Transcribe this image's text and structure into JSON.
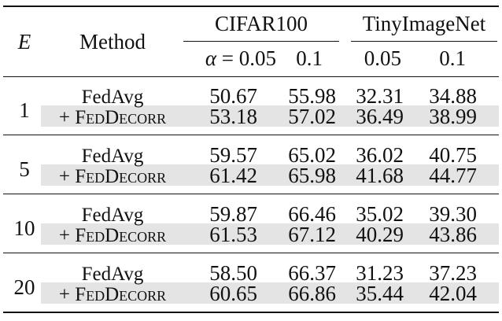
{
  "table": {
    "header": {
      "epoch_symbol": "E",
      "method": "Method",
      "datasets": [
        "CIFAR100",
        "TinyImageNet"
      ],
      "alpha_symbol": "α",
      "alpha_eq": " = ",
      "alpha_values": [
        "0.05",
        "0.1",
        "0.05",
        "0.1"
      ]
    },
    "groups": [
      {
        "E": "1",
        "rows": [
          {
            "method": "FedAvg",
            "plus": "",
            "values": [
              "50.67",
              "55.98",
              "32.31",
              "34.88"
            ]
          },
          {
            "method": "FedDecorr",
            "plus": "+ ",
            "values": [
              "53.18",
              "57.02",
              "36.49",
              "38.99"
            ]
          }
        ]
      },
      {
        "E": "5",
        "rows": [
          {
            "method": "FedAvg",
            "plus": "",
            "values": [
              "59.57",
              "65.02",
              "36.02",
              "40.75"
            ]
          },
          {
            "method": "FedDecorr",
            "plus": "+ ",
            "values": [
              "61.42",
              "65.98",
              "41.68",
              "44.77"
            ]
          }
        ]
      },
      {
        "E": "10",
        "rows": [
          {
            "method": "FedAvg",
            "plus": "",
            "values": [
              "59.87",
              "66.46",
              "35.02",
              "39.30"
            ]
          },
          {
            "method": "FedDecorr",
            "plus": "+ ",
            "values": [
              "61.53",
              "67.12",
              "40.29",
              "43.86"
            ]
          }
        ]
      },
      {
        "E": "20",
        "rows": [
          {
            "method": "FedAvg",
            "plus": "",
            "values": [
              "58.50",
              "66.37",
              "31.23",
              "37.23"
            ]
          },
          {
            "method": "FedDecorr",
            "plus": "+ ",
            "values": [
              "60.65",
              "66.86",
              "35.44",
              "42.04"
            ]
          }
        ]
      }
    ]
  }
}
